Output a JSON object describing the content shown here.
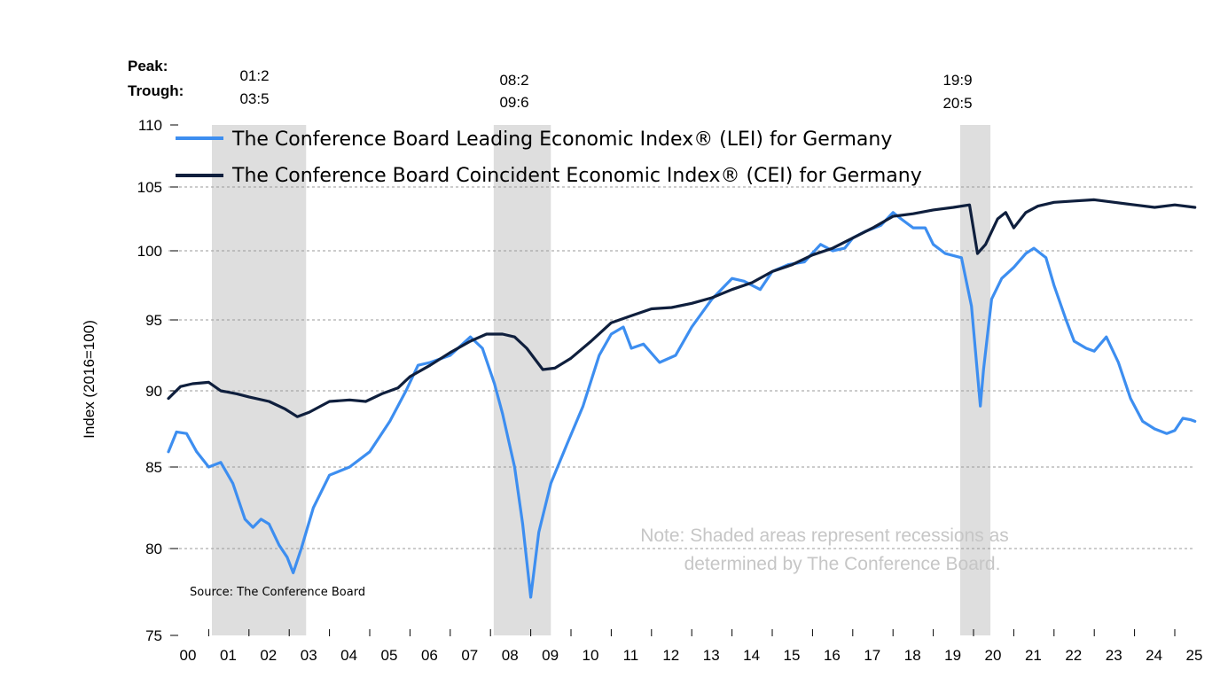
{
  "chart_data": {
    "type": "line",
    "ylabel": "Index (2016=100)",
    "ylim": [
      75,
      110
    ],
    "yticks": [
      75,
      80,
      85,
      90,
      95,
      100,
      105,
      110
    ],
    "xlim": [
      2000.0,
      2025.7
    ],
    "xtick_labels": [
      "00",
      "01",
      "02",
      "03",
      "04",
      "05",
      "06",
      "07",
      "08",
      "09",
      "10",
      "11",
      "12",
      "13",
      "14",
      "15",
      "16",
      "17",
      "18",
      "19",
      "20",
      "21",
      "22",
      "23",
      "24",
      "25"
    ],
    "grid": "horizontal dashed",
    "legend_position": "top-left",
    "peak_trough_header": {
      "peak": "Peak:",
      "trough": "Trough:"
    },
    "recessions": [
      {
        "peak_label": "01:2",
        "trough_label": "03:5",
        "start": 2001.08,
        "end": 2003.42
      },
      {
        "peak_label": "08:2",
        "trough_label": "09:6",
        "start": 2008.08,
        "end": 2009.5
      },
      {
        "peak_label": "19:9",
        "trough_label": "20:5",
        "start": 2019.67,
        "end": 2020.42
      }
    ],
    "note_lines": [
      "Note: Shaded areas represent recessions as",
      "determined by The Conference Board."
    ],
    "source": "Source: The Conference Board",
    "series": [
      {
        "name": "The Conference Board Leading Economic Index® (LEI) for Germany",
        "color": "#3d8ef0",
        "x": [
          2000.0,
          2000.2,
          2000.45,
          2000.7,
          2001.0,
          2001.3,
          2001.6,
          2001.9,
          2002.1,
          2002.3,
          2002.5,
          2002.75,
          2002.95,
          2003.1,
          2003.3,
          2003.6,
          2004.0,
          2004.5,
          2005.0,
          2005.5,
          2005.9,
          2006.2,
          2006.5,
          2007.0,
          2007.5,
          2007.8,
          2008.1,
          2008.3,
          2008.6,
          2008.8,
          2009.0,
          2009.2,
          2009.5,
          2009.9,
          2010.3,
          2010.7,
          2011.0,
          2011.3,
          2011.5,
          2011.8,
          2012.2,
          2012.6,
          2013.0,
          2013.5,
          2014.0,
          2014.3,
          2014.7,
          2015.0,
          2015.4,
          2015.8,
          2016.2,
          2016.5,
          2016.8,
          2017.0,
          2017.3,
          2017.7,
          2018.0,
          2018.2,
          2018.5,
          2018.8,
          2019.0,
          2019.3,
          2019.7,
          2019.95,
          2020.17,
          2020.25,
          2020.45,
          2020.7,
          2021.0,
          2021.3,
          2021.5,
          2021.8,
          2022.0,
          2022.3,
          2022.5,
          2022.8,
          2023.0,
          2023.3,
          2023.6,
          2023.9,
          2024.2,
          2024.5,
          2024.8,
          2025.0,
          2025.2,
          2025.4,
          2025.5
        ],
        "y": [
          86.0,
          87.3,
          87.2,
          86.0,
          85.0,
          85.3,
          84.0,
          81.8,
          81.3,
          81.8,
          81.5,
          80.2,
          79.5,
          78.6,
          80.0,
          82.5,
          84.5,
          85.0,
          86.0,
          88.0,
          90.0,
          91.8,
          92.0,
          92.5,
          93.8,
          93.0,
          90.5,
          88.5,
          85.0,
          81.5,
          77.2,
          81.0,
          84.0,
          86.5,
          89.0,
          92.5,
          94.0,
          94.5,
          93.0,
          93.3,
          92.0,
          92.5,
          94.5,
          96.5,
          98.0,
          97.8,
          97.2,
          98.5,
          99.0,
          99.2,
          100.5,
          100.0,
          100.2,
          101.0,
          101.5,
          102.0,
          103.0,
          102.5,
          101.8,
          101.8,
          100.5,
          99.8,
          99.5,
          96.0,
          89.0,
          91.5,
          96.5,
          98.0,
          98.8,
          99.8,
          100.2,
          99.5,
          97.5,
          95.0,
          93.5,
          93.0,
          92.8,
          93.8,
          92.0,
          89.5,
          88.0,
          87.5,
          87.2,
          87.4,
          88.2,
          88.1,
          88.0
        ]
      },
      {
        "name": "The Conference Board Coincident Economic Index® (CEI) for Germany",
        "color": "#0f1f3d",
        "x": [
          2000.0,
          2000.3,
          2000.6,
          2001.0,
          2001.3,
          2001.7,
          2002.0,
          2002.5,
          2002.9,
          2003.2,
          2003.5,
          2004.0,
          2004.5,
          2004.9,
          2005.3,
          2005.7,
          2006.0,
          2006.5,
          2007.0,
          2007.5,
          2007.9,
          2008.3,
          2008.6,
          2008.9,
          2009.3,
          2009.6,
          2010.0,
          2010.5,
          2011.0,
          2011.5,
          2012.0,
          2012.5,
          2013.0,
          2013.5,
          2014.0,
          2014.5,
          2015.0,
          2015.5,
          2016.0,
          2016.5,
          2017.0,
          2017.5,
          2018.0,
          2018.5,
          2019.0,
          2019.5,
          2019.9,
          2020.1,
          2020.3,
          2020.6,
          2020.8,
          2021.0,
          2021.3,
          2021.6,
          2022.0,
          2022.5,
          2023.0,
          2023.5,
          2024.0,
          2024.5,
          2025.0,
          2025.5
        ],
        "y": [
          89.5,
          90.3,
          90.5,
          90.6,
          90.0,
          89.8,
          89.6,
          89.3,
          88.8,
          88.3,
          88.6,
          89.3,
          89.4,
          89.3,
          89.8,
          90.2,
          91.0,
          91.8,
          92.7,
          93.5,
          94.0,
          94.0,
          93.8,
          93.0,
          91.5,
          91.6,
          92.3,
          93.5,
          94.8,
          95.3,
          95.8,
          95.9,
          96.2,
          96.6,
          97.2,
          97.7,
          98.5,
          99.0,
          99.7,
          100.2,
          101.0,
          101.8,
          102.7,
          102.9,
          103.2,
          103.4,
          103.6,
          99.8,
          100.5,
          102.5,
          103.0,
          101.8,
          103.0,
          103.5,
          103.8,
          103.9,
          104.0,
          103.8,
          103.6,
          103.4,
          103.6,
          103.4
        ]
      }
    ]
  }
}
